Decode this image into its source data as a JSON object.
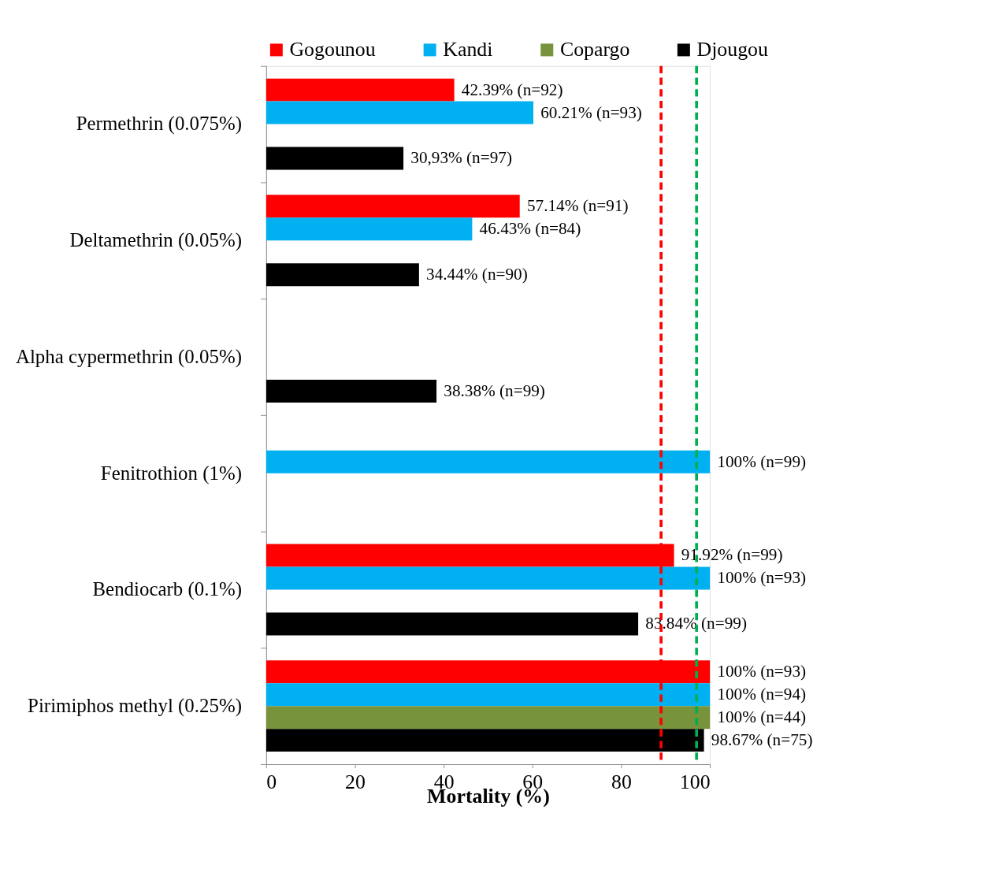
{
  "chart_data": {
    "type": "bar",
    "orientation": "horizontal",
    "xlabel": "Mortality (%)",
    "categories": [
      "Permethrin (0.075%)",
      "Deltamethrin (0.05%)",
      "Alpha cypermethrin (0.05%)",
      "Fenitrothion (1%)",
      "Bendiocarb (0.1%)",
      "Pirimiphos methyl (0.25%)"
    ],
    "series": [
      {
        "name": "Gogounou",
        "color": "#ff0000",
        "values": [
          42.39,
          57.14,
          null,
          null,
          91.92,
          100
        ],
        "value_labels": [
          "42.39% (n=92)",
          "57.14% (n=91)",
          null,
          null,
          "91.92% (n=99)",
          "100% (n=93)"
        ]
      },
      {
        "name": "Kandi",
        "color": "#00b0f0",
        "values": [
          60.21,
          46.43,
          null,
          100,
          100,
          100
        ],
        "value_labels": [
          "60.21% (n=93)",
          "46.43% (n=84)",
          null,
          "100% (n=99)",
          "100% (n=93)",
          "100% (n=94)"
        ]
      },
      {
        "name": "Copargo",
        "color": "#77933c",
        "values": [
          null,
          null,
          null,
          null,
          null,
          100
        ],
        "value_labels": [
          null,
          null,
          null,
          null,
          null,
          "100% (n=44)"
        ]
      },
      {
        "name": "Djougou",
        "color": "#000000",
        "values": [
          30.93,
          34.44,
          38.38,
          null,
          83.84,
          98.67
        ],
        "value_labels": [
          "30,93% (n=97)",
          "34.44% (n=90)",
          "38.38% (n=99)",
          null,
          "83.84% (n=99)",
          "98.67% (n=75)"
        ]
      }
    ],
    "xlim": [
      0,
      100
    ],
    "xticks": [
      0,
      20,
      40,
      60,
      80,
      100
    ],
    "ref_lines": [
      {
        "axis": "x",
        "value": 89,
        "color": "#ff0000",
        "line_style": "dashed"
      },
      {
        "axis": "x",
        "value": 97,
        "color": "#00b050",
        "line_style": "dashed"
      }
    ],
    "legend": "top",
    "grid": false
  }
}
